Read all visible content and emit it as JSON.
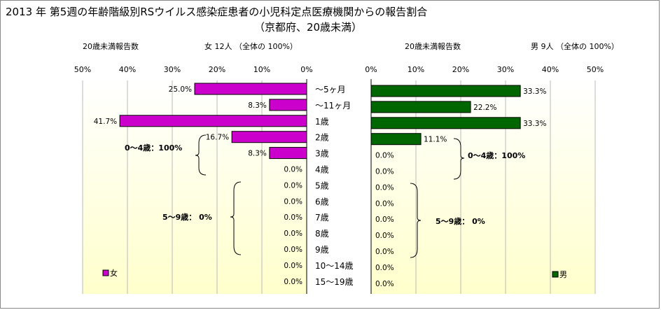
{
  "title": "2013 年 第5週の年齢階級別RSウイルス感染症患者の小児科定点医療機関からの報告割合",
  "subtitle": "（京都府、20歳未満）",
  "left_header": {
    "count_label": "20歳未満報告数",
    "summary": "女  12人  （全体の   100%）"
  },
  "right_header": {
    "count_label": "20歳未満報告数",
    "summary": "男  9人  （全体の   100%）"
  },
  "colors": {
    "female": "#cc00cc",
    "male": "#006600",
    "plot_top": "#ffffff",
    "plot_bottom": "#ffffcc"
  },
  "chart_data": [
    {
      "type": "bar",
      "orientation": "horizontal",
      "x_direction": "reversed",
      "categories": [
        "～5ヶ月",
        "～11ヶ月",
        "1歳",
        "2歳",
        "3歳",
        "4歳",
        "5歳",
        "6歳",
        "7歳",
        "8歳",
        "9歳",
        "10～14歳",
        "15～19歳"
      ],
      "series": [
        {
          "name": "女",
          "values": [
            25.0,
            8.3,
            41.7,
            16.7,
            8.3,
            0.0,
            0.0,
            0.0,
            0.0,
            0.0,
            0.0,
            0.0,
            0.0
          ]
        }
      ],
      "value_labels": [
        "25.0%",
        "8.3%",
        "41.7%",
        "16.7%",
        "8.3%",
        "0.0%",
        "0.0%",
        "0.0%",
        "0.0%",
        "0.0%",
        "0.0%",
        "0.0%",
        "0.0%"
      ],
      "xlim": [
        0,
        50
      ],
      "xticks": [
        "0%",
        "10%",
        "20%",
        "30%",
        "40%",
        "50%"
      ],
      "annotations": [
        {
          "text": "0～4歳：100%"
        },
        {
          "text": "5～9歳：  0%"
        }
      ],
      "legend": "bottom-left"
    },
    {
      "type": "bar",
      "orientation": "horizontal",
      "categories": [
        "～5ヶ月",
        "～11ヶ月",
        "1歳",
        "2歳",
        "3歳",
        "4歳",
        "5歳",
        "6歳",
        "7歳",
        "8歳",
        "9歳",
        "10～14歳",
        "15～19歳"
      ],
      "series": [
        {
          "name": "男",
          "values": [
            33.3,
            22.2,
            33.3,
            11.1,
            0.0,
            0.0,
            0.0,
            0.0,
            0.0,
            0.0,
            0.0,
            0.0,
            0.0
          ]
        }
      ],
      "value_labels": [
        "33.3%",
        "22.2%",
        "33.3%",
        "11.1%",
        "0.0%",
        "0.0%",
        "0.0%",
        "0.0%",
        "0.0%",
        "0.0%",
        "0.0%",
        "0.0%",
        "0.0%"
      ],
      "xlim": [
        0,
        50
      ],
      "xticks": [
        "0%",
        "10%",
        "20%",
        "30%",
        "40%",
        "50%"
      ],
      "annotations": [
        {
          "text": "0～4歳：100%"
        },
        {
          "text": "5～9歳：  0%"
        }
      ],
      "legend": "bottom-right"
    }
  ]
}
